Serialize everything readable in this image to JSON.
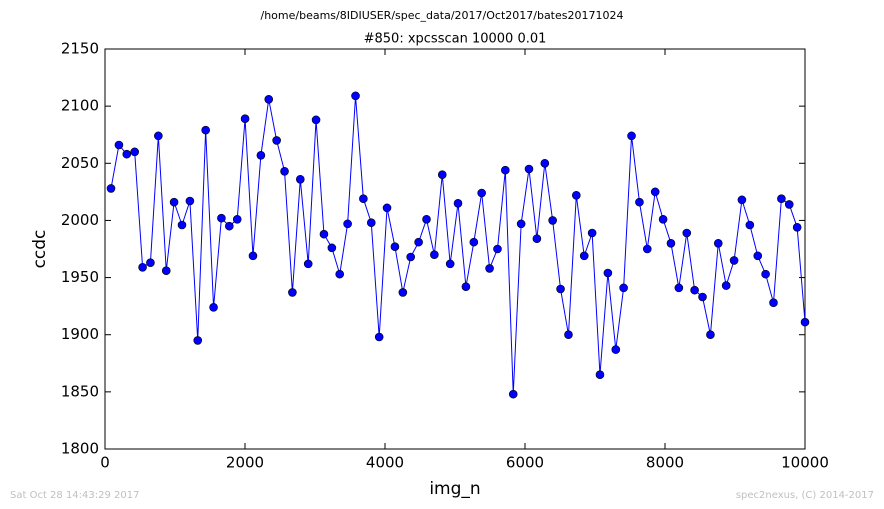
{
  "chart_data": {
    "type": "line",
    "suptitle": "/home/beams/8IDIUSER/spec_data/2017/Oct2017/bates20171024",
    "title": "#850: xpcsscan 10000 0.01",
    "xlabel": "img_n",
    "ylabel": "ccdc",
    "footer_left": "Sat Oct 28 14:43:29 2017",
    "footer_right": "spec2nexus, (C) 2014-2017",
    "color": "#0000ff",
    "marker": "circle",
    "x": [
      86,
      199,
      311,
      424,
      537,
      649,
      762,
      875,
      987,
      1100,
      1213,
      1325,
      1438,
      1551,
      1663,
      1776,
      1889,
      2001,
      2114,
      2227,
      2339,
      2452,
      2565,
      2677,
      2790,
      2903,
      3015,
      3128,
      3241,
      3353,
      3466,
      3579,
      3691,
      3804,
      3917,
      4029,
      4142,
      4255,
      4367,
      4480,
      4593,
      4705,
      4818,
      4931,
      5043,
      5156,
      5269,
      5381,
      5494,
      5607,
      5719,
      5832,
      5945,
      6057,
      6170,
      6283,
      6395,
      6508,
      6621,
      6733,
      6846,
      6959,
      7071,
      7184,
      7297,
      7409,
      7522,
      7635,
      7747,
      7860,
      7973,
      8085,
      8198,
      8311,
      8423,
      8536,
      8649,
      8761,
      8874,
      8987,
      9099,
      9212,
      9325,
      9437,
      9550,
      9663,
      9775,
      9888,
      10000
    ],
    "values": [
      2028,
      2066,
      2058,
      2060,
      1959,
      1963,
      2074,
      1956,
      2016,
      1996,
      2017,
      1895,
      2079,
      1924,
      2002,
      1995,
      2001,
      2089,
      1969,
      2057,
      2106,
      2070,
      2043,
      1937,
      2036,
      1962,
      2088,
      1988,
      1976,
      1953,
      1997,
      2109,
      2019,
      1998,
      1898,
      2011,
      1977,
      1937,
      1968,
      1981,
      2001,
      1970,
      2040,
      1962,
      2015,
      1942,
      1981,
      2024,
      1958,
      1975,
      2044,
      1848,
      1997,
      2045,
      1984,
      2050,
      2000,
      1940,
      1900,
      2022,
      1969,
      1989,
      1865,
      1954,
      1887,
      1941,
      2074,
      2016,
      1975,
      2025,
      2001,
      1980,
      1941,
      1989,
      1939,
      1933,
      1900,
      1980,
      1943,
      1965,
      2018,
      1996,
      1969,
      1953,
      1928,
      2019,
      2014,
      1994,
      1911
    ],
    "xlim": [
      0,
      10000
    ],
    "xticks": [
      0,
      2000,
      4000,
      6000,
      8000,
      10000
    ],
    "ylim": [
      1800,
      2150
    ],
    "yticks": [
      1800,
      1850,
      1900,
      1950,
      2000,
      2050,
      2100,
      2150
    ]
  }
}
